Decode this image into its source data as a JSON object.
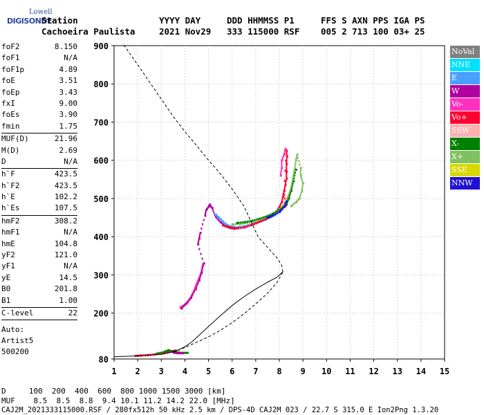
{
  "logo": {
    "line1": "Lowell",
    "line2": "DIGISONDE"
  },
  "header": {
    "row1": [
      "Station",
      "YYYY DAY",
      "DDD HHMMSS P1",
      "FFS S AXN PPS IGA PS"
    ],
    "row2": [
      "Cachoeira Paulista",
      "2021 Nov29",
      "333 115000 RSF",
      "005 2 713 100 03+ 25"
    ]
  },
  "params": [
    {
      "label": "foF2",
      "value": "8.150"
    },
    {
      "label": "foF1",
      "value": "N/A"
    },
    {
      "label": "foF1p",
      "value": "4.89"
    },
    {
      "label": "foE",
      "value": "3.51"
    },
    {
      "label": "foEp",
      "value": "3.43"
    },
    {
      "label": "fxI",
      "value": "9.00"
    },
    {
      "label": "foEs",
      "value": "3.90"
    },
    {
      "label": "fmin",
      "value": "1.75"
    },
    {
      "sep": true
    },
    {
      "label": "MUF(D)",
      "value": "21.96"
    },
    {
      "label": "M(D)",
      "value": "2.69"
    },
    {
      "label": "D",
      "value": "N/A"
    },
    {
      "sep": true
    },
    {
      "label": "h`F",
      "value": "423.5"
    },
    {
      "label": "h`F2",
      "value": "423.5"
    },
    {
      "label": "h`E",
      "value": "102.2"
    },
    {
      "label": "h`Es",
      "value": "107.5"
    },
    {
      "sep": true
    },
    {
      "label": "hmF2",
      "value": "308.2"
    },
    {
      "label": "hmF1",
      "value": "N/A"
    },
    {
      "label": "hmE",
      "value": "104.8"
    },
    {
      "label": "yF2",
      "value": "121.0"
    },
    {
      "label": "yF1",
      "value": "N/A"
    },
    {
      "label": "yE",
      "value": "14.5"
    },
    {
      "label": "B0",
      "value": "201.8"
    },
    {
      "label": "B1",
      "value": "1.00"
    },
    {
      "sep": true
    },
    {
      "label": "C-level",
      "value": "22"
    },
    {
      "sep": true
    }
  ],
  "auto": [
    "Auto:",
    "Artist5",
    "500200"
  ],
  "legend": [
    {
      "name": "NoVal",
      "color": "#808080"
    },
    {
      "name": "NNE",
      "color": "#00e0ff"
    },
    {
      "name": "E",
      "color": "#4aa0ff"
    },
    {
      "name": "W",
      "color": "#b000a0"
    },
    {
      "name": "Vo-",
      "color": "#ff30c0"
    },
    {
      "name": "Vo+",
      "color": "#ff0030"
    },
    {
      "name": "SSW",
      "color": "#ffb0b0"
    },
    {
      "name": "X-",
      "color": "#008000"
    },
    {
      "name": "X+",
      "color": "#80c060"
    },
    {
      "name": "SSE",
      "color": "#d8d800"
    },
    {
      "name": "NNW",
      "color": "#2010d0"
    }
  ],
  "bottom": {
    "row1": "D     100  200  400  600  800 1000 1500 3000 [km]",
    "row2": "MUF    8.5  8.5  8.8  9.4 10.1 11.2 14.2 22.0 [MHz]"
  },
  "footer": "CAJ2M_2021333115000.RSF / 280fx512h 50 kHz 2.5 km / DPS-4D CAJ2M 023 / 22.7 S 315.0 E Ion2Png 1.3.20",
  "chart_data": {
    "type": "scatter",
    "xlim": [
      1,
      15
    ],
    "ylim": [
      80,
      900
    ],
    "xticks": [
      1,
      2,
      3,
      4,
      5,
      6,
      7,
      8,
      9,
      10,
      11,
      12,
      13,
      14,
      15
    ],
    "yticks": [
      80,
      200,
      300,
      400,
      500,
      600,
      700,
      800,
      900
    ],
    "grid": true,
    "traces": [
      {
        "color": "#ff0030",
        "points": [
          [
            1.9,
            88
          ],
          [
            2.1,
            89
          ],
          [
            2.4,
            90
          ],
          [
            2.7,
            92
          ],
          [
            3.0,
            95
          ],
          [
            3.2,
            97
          ],
          [
            3.4,
            100
          ],
          [
            3.6,
            102
          ]
        ]
      },
      {
        "color": "#008000",
        "points": [
          [
            2.8,
            94
          ],
          [
            3.1,
            98
          ],
          [
            3.3,
            103
          ],
          [
            3.5,
            99
          ],
          [
            3.7,
            97
          ],
          [
            3.9,
            96
          ],
          [
            4.1,
            96
          ]
        ]
      },
      {
        "color": "#b000a0",
        "points": [
          [
            3.5,
            97
          ],
          [
            3.7,
            95
          ],
          [
            3.9,
            95
          ]
        ]
      },
      {
        "color": "#ff30c0",
        "points": [
          [
            3.8,
            215
          ],
          [
            3.9,
            218
          ],
          [
            4.0,
            222
          ],
          [
            4.1,
            228
          ],
          [
            4.2,
            236
          ],
          [
            4.3,
            248
          ],
          [
            4.4,
            262
          ],
          [
            4.5,
            278
          ],
          [
            4.6,
            292
          ],
          [
            4.7,
            310
          ],
          [
            4.75,
            328
          ]
        ]
      },
      {
        "color": "#b000a0",
        "points": [
          [
            3.85,
            212
          ],
          [
            4.05,
            225
          ],
          [
            4.25,
            240
          ],
          [
            4.45,
            262
          ],
          [
            4.6,
            285
          ],
          [
            4.7,
            305
          ],
          [
            4.8,
            330
          ],
          [
            4.55,
            380
          ],
          [
            4.6,
            395
          ],
          [
            4.65,
            410
          ],
          [
            4.85,
            455
          ],
          [
            4.9,
            470
          ],
          [
            5.0,
            478
          ],
          [
            5.05,
            484
          ],
          [
            5.15,
            475
          ],
          [
            5.3,
            452
          ],
          [
            5.5,
            438
          ],
          [
            5.7,
            428
          ],
          [
            5.9,
            423
          ],
          [
            6.1,
            421
          ]
        ]
      },
      {
        "color": "#4aa0ff",
        "points": [
          [
            5.3,
            458
          ],
          [
            5.4,
            452
          ],
          [
            5.5,
            446
          ],
          [
            5.6,
            440
          ],
          [
            5.7,
            434
          ],
          [
            5.8,
            430
          ],
          [
            6.0,
            426
          ],
          [
            6.2,
            424
          ],
          [
            6.4,
            426
          ],
          [
            6.6,
            428
          ],
          [
            6.8,
            432
          ],
          [
            7.0,
            436
          ],
          [
            7.2,
            440
          ],
          [
            7.4,
            444
          ],
          [
            7.6,
            450
          ],
          [
            7.8,
            456
          ],
          [
            8.0,
            464
          ],
          [
            8.1,
            470
          ],
          [
            8.2,
            478
          ]
        ]
      },
      {
        "color": "#ff0030",
        "points": [
          [
            5.6,
            430
          ],
          [
            5.8,
            426
          ],
          [
            6.0,
            423
          ],
          [
            6.2,
            422
          ],
          [
            6.5,
            424
          ],
          [
            6.8,
            430
          ],
          [
            7.0,
            435
          ],
          [
            7.2,
            440
          ],
          [
            7.4,
            446
          ],
          [
            7.6,
            452
          ],
          [
            7.8,
            460
          ],
          [
            7.9,
            468
          ],
          [
            8.0,
            478
          ],
          [
            8.1,
            490
          ],
          [
            8.15,
            505
          ],
          [
            8.2,
            520
          ],
          [
            8.25,
            535
          ],
          [
            8.3,
            552
          ],
          [
            8.3,
            570
          ],
          [
            8.3,
            590
          ],
          [
            8.32,
            610
          ],
          [
            8.3,
            625
          ],
          [
            8.2,
            520
          ],
          [
            8.25,
            480
          ],
          [
            8.35,
            500
          ]
        ]
      },
      {
        "color": "#80c060",
        "points": [
          [
            6.0,
            432
          ],
          [
            6.3,
            433
          ],
          [
            6.6,
            436
          ],
          [
            6.9,
            440
          ],
          [
            7.2,
            446
          ],
          [
            7.5,
            452
          ],
          [
            7.8,
            462
          ],
          [
            8.0,
            472
          ],
          [
            8.2,
            484
          ],
          [
            8.3,
            496
          ],
          [
            8.4,
            510
          ],
          [
            8.5,
            528
          ],
          [
            8.55,
            545
          ],
          [
            8.6,
            562
          ],
          [
            8.65,
            578
          ],
          [
            8.7,
            600
          ],
          [
            8.75,
            615
          ],
          [
            8.9,
            580
          ],
          [
            8.9,
            560
          ],
          [
            9.0,
            540
          ],
          [
            8.95,
            520
          ],
          [
            8.85,
            500
          ],
          [
            8.7,
            490
          ],
          [
            8.5,
            480
          ]
        ]
      },
      {
        "color": "#008000",
        "points": [
          [
            6.2,
            436
          ],
          [
            6.5,
            438
          ],
          [
            6.8,
            441
          ],
          [
            7.1,
            446
          ],
          [
            7.4,
            452
          ],
          [
            7.7,
            460
          ],
          [
            8.0,
            470
          ],
          [
            8.3,
            484
          ],
          [
            8.4,
            500
          ],
          [
            8.5,
            520
          ],
          [
            8.6,
            545
          ],
          [
            8.7,
            575
          ]
        ]
      },
      {
        "color": "#2010d0",
        "points": [
          [
            7.5,
            450
          ],
          [
            7.7,
            455
          ],
          [
            8.0,
            465
          ],
          [
            8.2,
            478
          ],
          [
            8.3,
            492
          ]
        ]
      },
      {
        "color": "#ff30c0",
        "points": [
          [
            8.05,
            560
          ],
          [
            8.1,
            580
          ],
          [
            8.1,
            600
          ],
          [
            8.2,
            615
          ],
          [
            8.25,
            630
          ]
        ]
      }
    ],
    "profile_solid": [
      [
        1.0,
        86
      ],
      [
        1.5,
        87
      ],
      [
        2.0,
        88
      ],
      [
        2.5,
        90
      ],
      [
        3.0,
        92
      ],
      [
        3.4,
        97
      ],
      [
        3.7,
        103
      ],
      [
        4.0,
        112
      ],
      [
        4.3,
        125
      ],
      [
        4.6,
        142
      ],
      [
        5.0,
        165
      ],
      [
        5.5,
        193
      ],
      [
        6.0,
        220
      ],
      [
        6.5,
        243
      ],
      [
        7.0,
        263
      ],
      [
        7.5,
        281
      ],
      [
        7.9,
        294
      ],
      [
        8.15,
        308
      ]
    ],
    "profile_dashed": [
      [
        8.15,
        308
      ],
      [
        8.1,
        325
      ],
      [
        7.9,
        345
      ],
      [
        7.5,
        372
      ],
      [
        7.1,
        400
      ],
      [
        6.8,
        440
      ],
      [
        6.5,
        480
      ],
      [
        6.0,
        525
      ],
      [
        5.5,
        565
      ],
      [
        5.0,
        600
      ],
      [
        4.5,
        638
      ],
      [
        4.0,
        675
      ],
      [
        3.5,
        715
      ],
      [
        3.0,
        760
      ],
      [
        2.5,
        805
      ],
      [
        2.0,
        850
      ],
      [
        1.6,
        885
      ],
      [
        1.4,
        903
      ]
    ],
    "profile_dashed_low": [
      [
        3.5,
        97
      ],
      [
        4.0,
        110
      ],
      [
        4.5,
        124
      ],
      [
        5.0,
        138
      ],
      [
        5.5,
        155
      ],
      [
        6.0,
        175
      ],
      [
        6.5,
        198
      ],
      [
        7.0,
        224
      ],
      [
        7.5,
        252
      ],
      [
        7.9,
        280
      ],
      [
        8.15,
        308
      ]
    ]
  }
}
